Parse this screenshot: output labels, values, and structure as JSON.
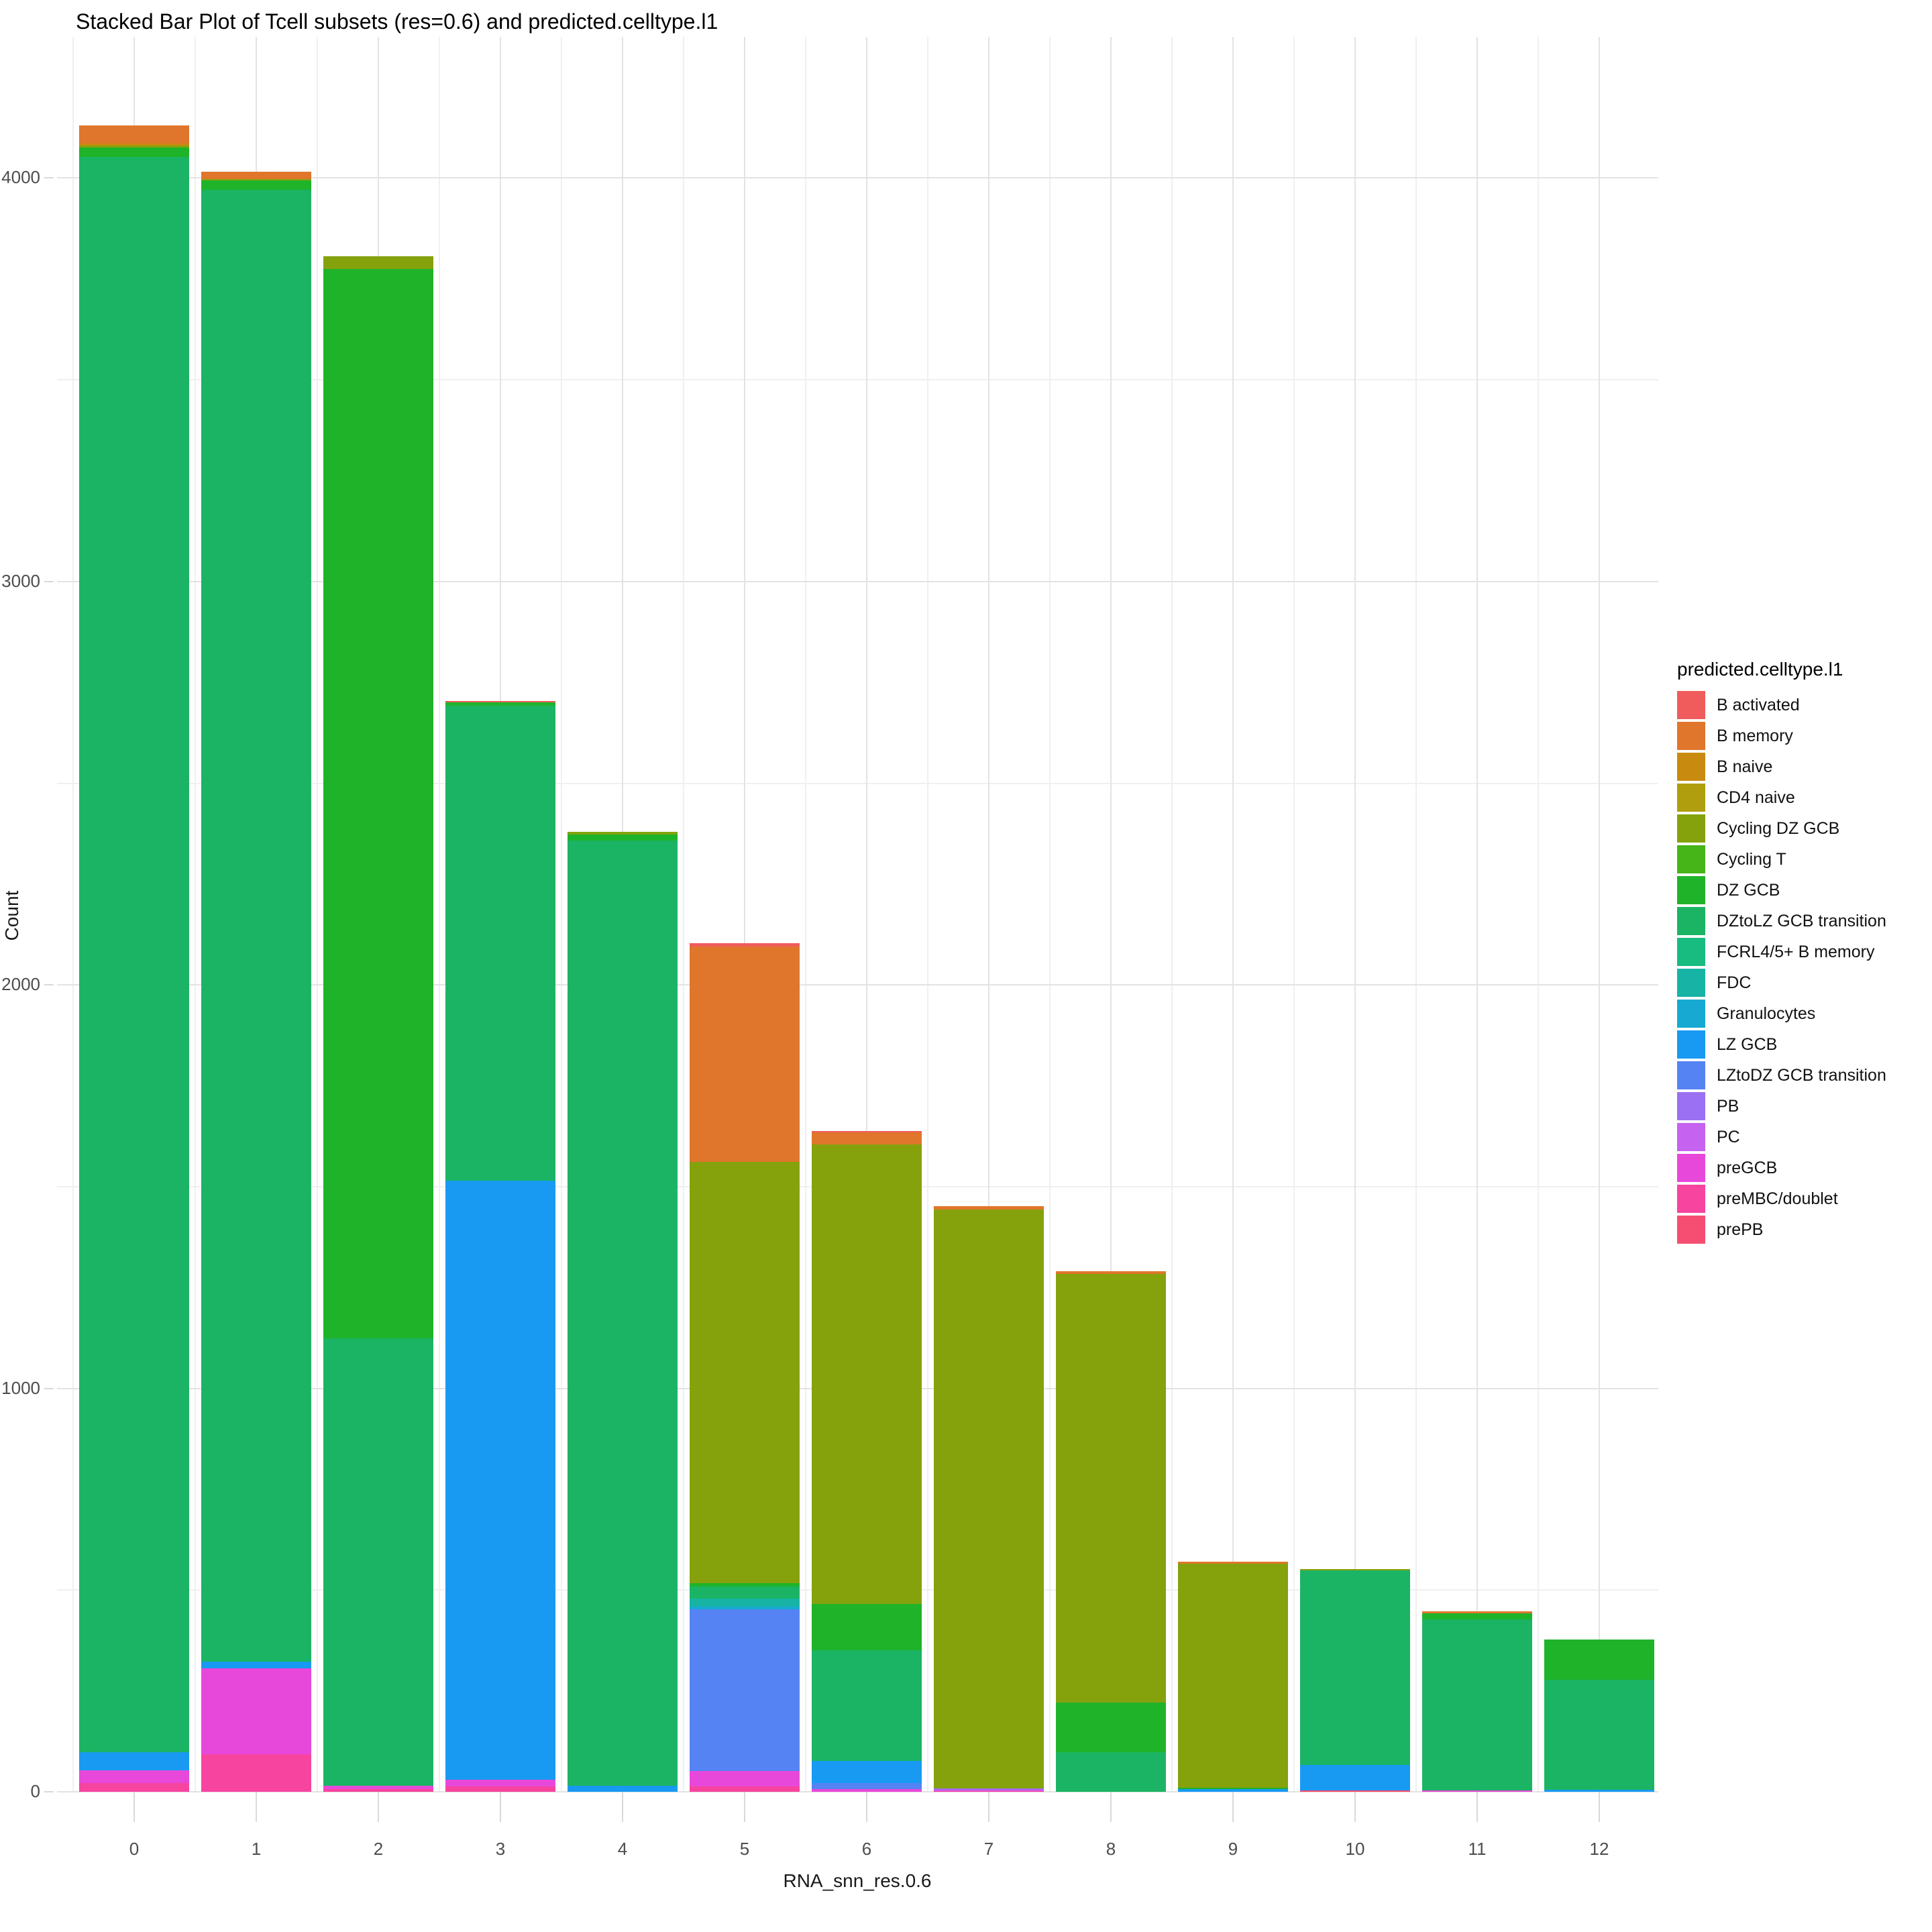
{
  "title": "Stacked Bar Plot of Tcell subsets (res=0.6) and predicted.celltype.l1",
  "x_axis": {
    "label": "RNA_snn_res.0.6",
    "tick_labels": [
      "0",
      "1",
      "2",
      "3",
      "4",
      "5",
      "6",
      "7",
      "8",
      "9",
      "10",
      "11",
      "12"
    ]
  },
  "y_axis": {
    "label": "Count",
    "tick_labels": [
      0,
      1000,
      2000,
      3000,
      4000
    ],
    "minor_gridlines": [
      500,
      1500,
      2500,
      3500
    ],
    "range": [
      0,
      4350
    ]
  },
  "legend": {
    "title": "predicted.celltype.l1",
    "items": [
      {
        "label": "B activated",
        "color": "#F05C5C"
      },
      {
        "label": "B memory",
        "color": "#E0762B"
      },
      {
        "label": "B naive",
        "color": "#C98B0F"
      },
      {
        "label": "CD4 naive",
        "color": "#B09E0E"
      },
      {
        "label": "Cycling DZ GCB",
        "color": "#85A20D"
      },
      {
        "label": "Cycling T",
        "color": "#45B518"
      },
      {
        "label": "DZ GCB",
        "color": "#1FB32A"
      },
      {
        "label": "DZtoLZ GCB transition",
        "color": "#1BB464"
      },
      {
        "label": "FCRL4/5+ B memory",
        "color": "#19BC80"
      },
      {
        "label": "FDC",
        "color": "#17B4A5"
      },
      {
        "label": "Granulocytes",
        "color": "#17A9D2"
      },
      {
        "label": "LZ GCB",
        "color": "#189AF2"
      },
      {
        "label": "LZtoDZ GCB transition",
        "color": "#5583F4"
      },
      {
        "label": "PB",
        "color": "#9C70F2"
      },
      {
        "label": "PC",
        "color": "#C562F0"
      },
      {
        "label": "preGCB",
        "color": "#E848DA"
      },
      {
        "label": "preMBC/doublet",
        "color": "#F6449F"
      },
      {
        "label": "prePB",
        "color": "#F54E72"
      }
    ]
  },
  "chart_data": {
    "type": "bar",
    "stacked": true,
    "title": "Stacked Bar Plot of Tcell subsets (res=0.6) and predicted.celltype.l1",
    "xlabel": "RNA_snn_res.0.6",
    "ylabel": "Count",
    "ylim": [
      0,
      4350
    ],
    "grid": true,
    "legend_position": "right",
    "categories": [
      "0",
      "1",
      "2",
      "3",
      "4",
      "5",
      "6",
      "7",
      "8",
      "9",
      "10",
      "11",
      "12"
    ],
    "note": "segments listed top-to-bottom in legend (stacking) order",
    "bars": [
      {
        "category": "0",
        "total": 4131,
        "segments": [
          {
            "celltype": "B memory",
            "count": 46
          },
          {
            "celltype": "B naive",
            "count": 5
          },
          {
            "celltype": "Cycling DZ GCB",
            "count": 4
          },
          {
            "celltype": "DZ GCB",
            "count": 23
          },
          {
            "celltype": "DZtoLZ GCB transition",
            "count": 3955
          },
          {
            "celltype": "LZ GCB",
            "count": 45
          },
          {
            "celltype": "preGCB",
            "count": 31
          },
          {
            "celltype": "preMBC/doublet",
            "count": 22
          }
        ]
      },
      {
        "category": "1",
        "total": 4015,
        "segments": [
          {
            "celltype": "B memory",
            "count": 18
          },
          {
            "celltype": "Cycling DZ GCB",
            "count": 3
          },
          {
            "celltype": "DZ GCB",
            "count": 23
          },
          {
            "celltype": "DZtoLZ GCB transition",
            "count": 3648
          },
          {
            "celltype": "LZ GCB",
            "count": 17
          },
          {
            "celltype": "preGCB",
            "count": 213
          },
          {
            "celltype": "preMBC/doublet",
            "count": 93
          }
        ]
      },
      {
        "category": "2",
        "total": 3807,
        "segments": [
          {
            "celltype": "Cycling DZ GCB",
            "count": 33
          },
          {
            "celltype": "DZ GCB",
            "count": 2650
          },
          {
            "celltype": "DZtoLZ GCB transition",
            "count": 1109
          },
          {
            "celltype": "preGCB",
            "count": 8
          },
          {
            "celltype": "preMBC/doublet",
            "count": 7
          }
        ]
      },
      {
        "category": "3",
        "total": 2703,
        "segments": [
          {
            "celltype": "B activated",
            "count": 3
          },
          {
            "celltype": "DZ GCB",
            "count": 8
          },
          {
            "celltype": "DZtoLZ GCB transition",
            "count": 1177
          },
          {
            "celltype": "LZ GCB",
            "count": 1485
          },
          {
            "celltype": "preGCB",
            "count": 17
          },
          {
            "celltype": "preMBC/doublet",
            "count": 13
          }
        ]
      },
      {
        "category": "4",
        "total": 2380,
        "segments": [
          {
            "celltype": "Cycling DZ GCB",
            "count": 7
          },
          {
            "celltype": "DZ GCB",
            "count": 15
          },
          {
            "celltype": "DZtoLZ GCB transition",
            "count": 2343
          },
          {
            "celltype": "LZ GCB",
            "count": 15
          }
        ]
      },
      {
        "category": "5",
        "total": 2103,
        "segments": [
          {
            "celltype": "B activated",
            "count": 7
          },
          {
            "celltype": "B memory",
            "count": 535
          },
          {
            "celltype": "Cycling DZ GCB",
            "count": 1044
          },
          {
            "celltype": "DZ GCB",
            "count": 8
          },
          {
            "celltype": "DZtoLZ GCB transition",
            "count": 30
          },
          {
            "celltype": "FDC",
            "count": 20
          },
          {
            "celltype": "Granulocytes",
            "count": 7
          },
          {
            "celltype": "LZtoDZ GCB transition",
            "count": 400
          },
          {
            "celltype": "preGCB",
            "count": 39
          },
          {
            "celltype": "preMBC/doublet",
            "count": 13
          }
        ]
      },
      {
        "category": "6",
        "total": 1638,
        "segments": [
          {
            "celltype": "B activated",
            "count": 3
          },
          {
            "celltype": "B memory",
            "count": 30
          },
          {
            "celltype": "Cycling DZ GCB",
            "count": 1139
          },
          {
            "celltype": "DZ GCB",
            "count": 115
          },
          {
            "celltype": "DZtoLZ GCB transition",
            "count": 274
          },
          {
            "celltype": "LZ GCB",
            "count": 55
          },
          {
            "celltype": "LZtoDZ GCB transition",
            "count": 15
          },
          {
            "celltype": "preGCB",
            "count": 7
          }
        ]
      },
      {
        "category": "7",
        "total": 1451,
        "segments": [
          {
            "celltype": "B memory",
            "count": 8
          },
          {
            "celltype": "Cycling DZ GCB",
            "count": 1435
          },
          {
            "celltype": "PB",
            "count": 2
          },
          {
            "celltype": "PC",
            "count": 2
          },
          {
            "celltype": "preGCB",
            "count": 2
          },
          {
            "celltype": "preMBC/doublet",
            "count": 2
          }
        ]
      },
      {
        "category": "8",
        "total": 1290,
        "segments": [
          {
            "celltype": "B memory",
            "count": 7
          },
          {
            "celltype": "Cycling DZ GCB",
            "count": 1062
          },
          {
            "celltype": "DZ GCB",
            "count": 123
          },
          {
            "celltype": "DZtoLZ GCB transition",
            "count": 98
          }
        ]
      },
      {
        "category": "9",
        "total": 570,
        "segments": [
          {
            "celltype": "B memory",
            "count": 5
          },
          {
            "celltype": "Cycling DZ GCB",
            "count": 555
          },
          {
            "celltype": "DZ GCB",
            "count": 3
          },
          {
            "celltype": "LZ GCB",
            "count": 7
          }
        ]
      },
      {
        "category": "10",
        "total": 552,
        "segments": [
          {
            "celltype": "Cycling DZ GCB",
            "count": 3
          },
          {
            "celltype": "DZtoLZ GCB transition",
            "count": 482
          },
          {
            "celltype": "LZ GCB",
            "count": 63
          },
          {
            "celltype": "prePB",
            "count": 4
          }
        ]
      },
      {
        "category": "11",
        "total": 447,
        "segments": [
          {
            "celltype": "B memory",
            "count": 4
          },
          {
            "celltype": "DZ GCB",
            "count": 15
          },
          {
            "celltype": "DZtoLZ GCB transition",
            "count": 424
          },
          {
            "celltype": "preGCB",
            "count": 4
          }
        ]
      },
      {
        "category": "12",
        "total": 377,
        "segments": [
          {
            "celltype": "DZ GCB",
            "count": 100
          },
          {
            "celltype": "DZtoLZ GCB transition",
            "count": 272
          },
          {
            "celltype": "LZ GCB",
            "count": 5
          }
        ]
      }
    ]
  }
}
